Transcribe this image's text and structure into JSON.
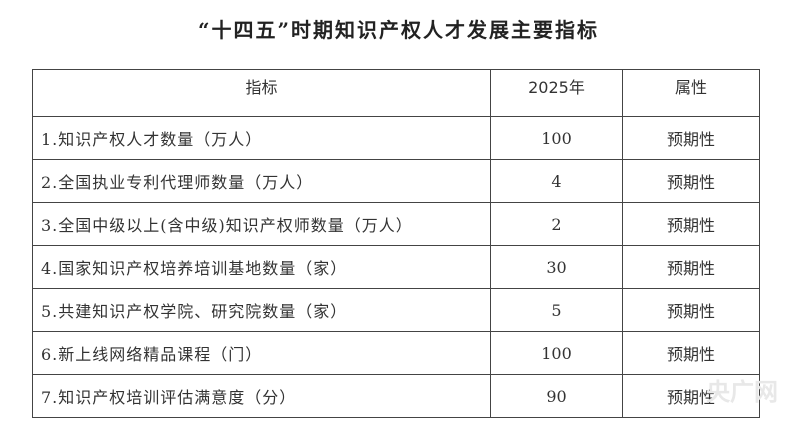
{
  "title": "“十四五”时期知识产权人才发展主要指标",
  "table": {
    "headers": [
      "指标",
      "2025年",
      "属性"
    ],
    "rows": [
      {
        "indicator": "1.知识产权人才数量（万人）",
        "value": "100",
        "attribute": "预期性"
      },
      {
        "indicator": "2.全国执业专利代理师数量（万人）",
        "value": "4",
        "attribute": "预期性"
      },
      {
        "indicator": "3.全国中级以上(含中级)知识产权师数量（万人）",
        "value": "2",
        "attribute": "预期性"
      },
      {
        "indicator": "4.国家知识产权培养培训基地数量（家）",
        "value": "30",
        "attribute": "预期性"
      },
      {
        "indicator": "5.共建知识产权学院、研究院数量（家）",
        "value": "5",
        "attribute": "预期性"
      },
      {
        "indicator": "6.新上线网络精品课程（门）",
        "value": "100",
        "attribute": "预期性"
      },
      {
        "indicator": "7.知识产权培训评估满意度（分）",
        "value": "90",
        "attribute": "预期性"
      }
    ]
  },
  "watermark": "央广网"
}
